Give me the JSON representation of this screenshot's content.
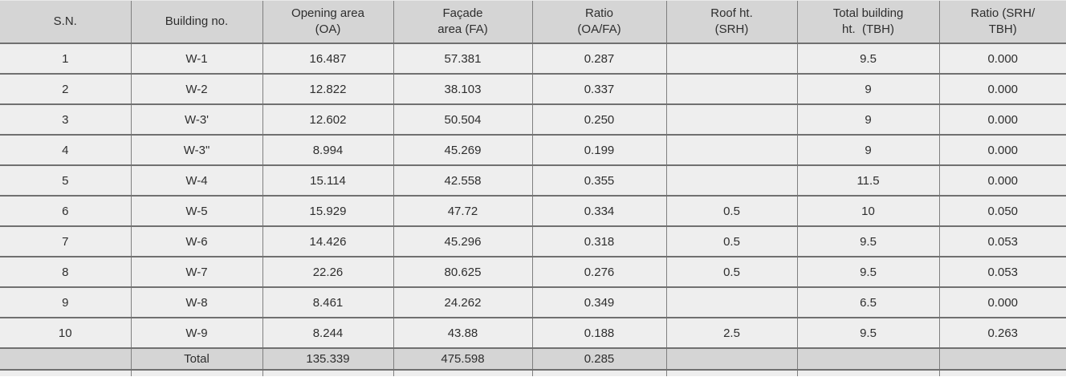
{
  "table": {
    "title": "facade-opening-roof-height-ratio-table",
    "columns": [
      {
        "label": "S.N."
      },
      {
        "label": "Building no."
      },
      {
        "label": "Opening area\n(OA)"
      },
      {
        "label": "Façade\narea (FA)"
      },
      {
        "label": "Ratio\n(OA/FA)"
      },
      {
        "label": "Roof ht.\n(SRH)"
      },
      {
        "label": "Total building\nht.  (TBH)"
      },
      {
        "label": "Ratio (SRH/\nTBH)"
      }
    ],
    "rows": [
      [
        "1",
        "W-1",
        "16.487",
        "57.381",
        "0.287",
        "",
        "9.5",
        "0.000"
      ],
      [
        "2",
        "W-2",
        "12.822",
        "38.103",
        "0.337",
        "",
        "9",
        "0.000"
      ],
      [
        "3",
        "W-3'",
        "12.602",
        "50.504",
        "0.250",
        "",
        "9",
        "0.000"
      ],
      [
        "4",
        "W-3\"",
        "8.994",
        "45.269",
        "0.199",
        "",
        "9",
        "0.000"
      ],
      [
        "5",
        "W-4",
        "15.114",
        "42.558",
        "0.355",
        "",
        "11.5",
        "0.000"
      ],
      [
        "6",
        "W-5",
        "15.929",
        "47.72",
        "0.334",
        "0.5",
        "10",
        "0.050"
      ],
      [
        "7",
        "W-6",
        "14.426",
        "45.296",
        "0.318",
        "0.5",
        "9.5",
        "0.053"
      ],
      [
        "8",
        "W-7",
        "22.26",
        "80.625",
        "0.276",
        "0.5",
        "9.5",
        "0.053"
      ],
      [
        "9",
        "W-8",
        "8.461",
        "24.262",
        "0.349",
        "",
        "6.5",
        "0.000"
      ],
      [
        "10",
        "W-9",
        "8.244",
        "43.88",
        "0.188",
        "2.5",
        "9.5",
        "0.263"
      ]
    ],
    "total_row": [
      "",
      "Total",
      "135.339",
      "475.598",
      "0.285",
      "",
      "",
      ""
    ]
  },
  "colors": {
    "header_bg": "#d5d5d5",
    "body_bg": "#eeeeee",
    "total_bg": "#d5d5d5",
    "border": "#707070",
    "text": "#2e2e2e"
  }
}
